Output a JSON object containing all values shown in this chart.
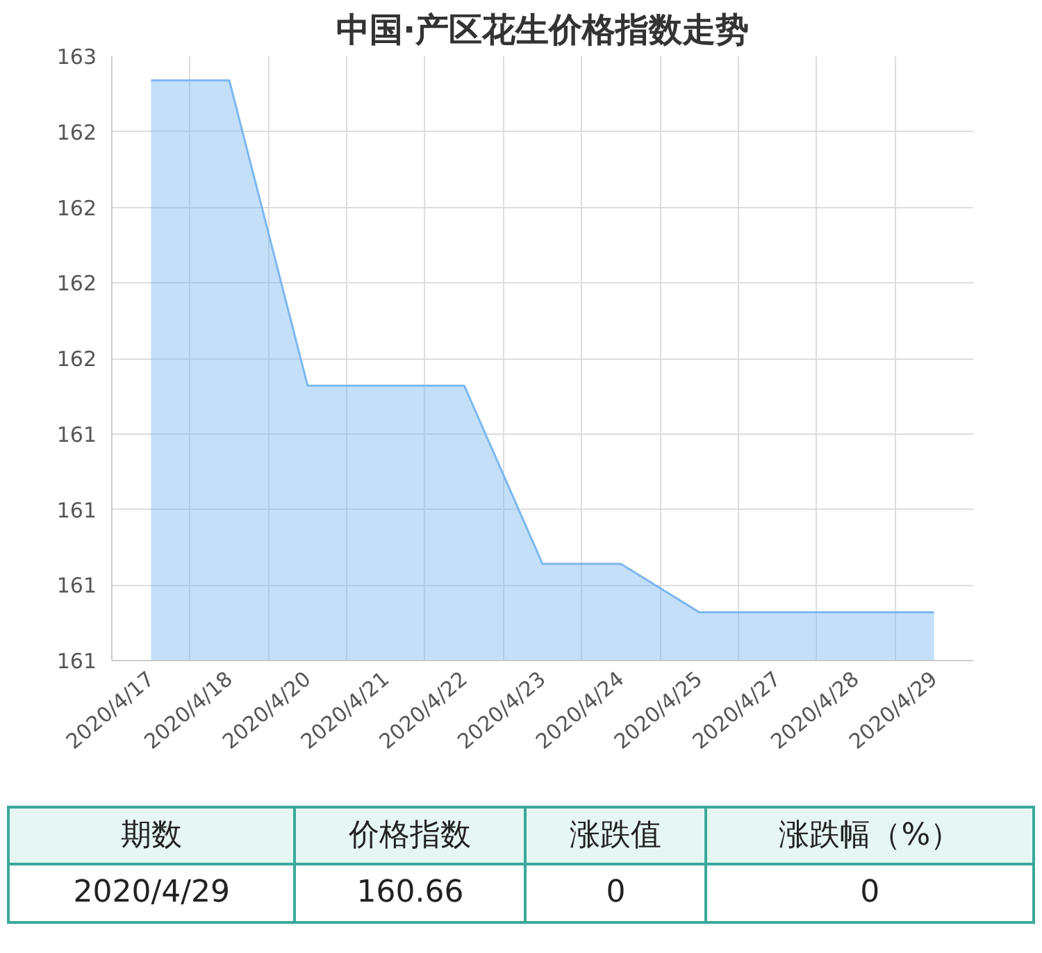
{
  "chart_data": {
    "type": "area",
    "title": "中国·产区花生价格指数走势",
    "categories": [
      "2020/4/17",
      "2020/4/18",
      "2020/4/20",
      "2020/4/21",
      "2020/4/22",
      "2020/4/23",
      "2020/4/24",
      "2020/4/25",
      "2020/4/27",
      "2020/4/28",
      "2020/4/29"
    ],
    "values": [
      162.42,
      162.42,
      161.41,
      161.41,
      161.41,
      160.82,
      160.82,
      160.66,
      160.66,
      160.66,
      160.66
    ],
    "color": "#7db7f0",
    "ylim": [
      160.5,
      162.5
    ],
    "yticks": [
      {
        "value": 160.5,
        "label": "161"
      },
      {
        "value": 160.75,
        "label": "161"
      },
      {
        "value": 161,
        "label": "161"
      },
      {
        "value": 161.25,
        "label": "161"
      },
      {
        "value": 161.5,
        "label": "162"
      },
      {
        "value": 161.75,
        "label": "162"
      },
      {
        "value": 162,
        "label": "162"
      },
      {
        "value": 162.25,
        "label": "162"
      },
      {
        "value": 162.5,
        "label": "163"
      }
    ],
    "grid": true,
    "annotations": [
      "期数",
      "价格指数",
      "涨跌值",
      "涨跌幅（%）",
      "2020/4/29",
      "160.66",
      "0",
      "0"
    ]
  }
}
